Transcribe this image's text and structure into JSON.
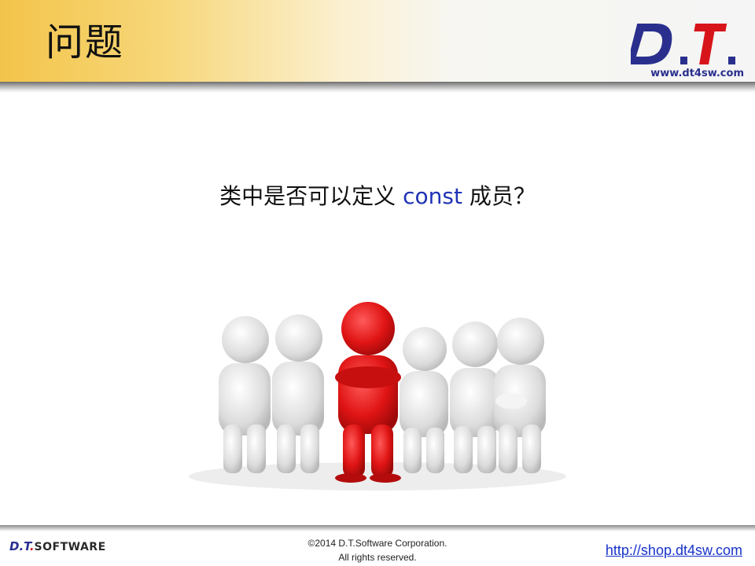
{
  "header": {
    "title": "问题",
    "logo_text": "D.T.",
    "site": "www.dt4sw.com"
  },
  "main": {
    "question_prefix": "类中是否可以定义",
    "question_keyword": "const",
    "question_suffix": "成员？",
    "colors": {
      "keyword": "#1f33b5",
      "highlight_figure": "#e01414",
      "figure": "#e6e6e6"
    }
  },
  "footer": {
    "brand_dt": "D.T",
    "brand_dot": ".",
    "brand_software": "SOFTWARE",
    "copyright_line1": "©2014 D.T.Software Corporation.",
    "copyright_line2": "All rights reserved.",
    "url": "http://shop.dt4sw.com"
  }
}
